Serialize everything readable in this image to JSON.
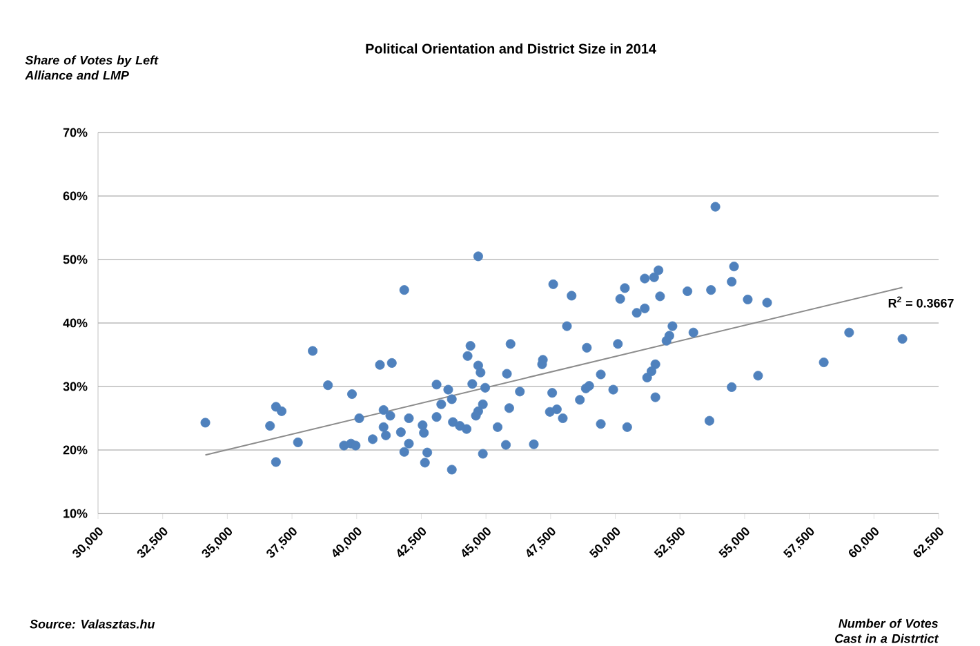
{
  "chart_data": {
    "type": "scatter",
    "title": "Political Orientation and District Size in 2014",
    "ylabel": "Share of Votes by Left Alliance and LMP",
    "xlabel": "Number of Votes Cast in a Distrtict",
    "annotations": [
      "Source: Valasztas.hu",
      {
        "text": "R$^{2}$ = 0.3667",
        "x": 61100,
        "y": 45.6
      }
    ],
    "xlim": [
      30000,
      62500
    ],
    "xticks": [
      {
        "value": 30000,
        "label": "30,000"
      },
      {
        "value": 32500,
        "label": "32,500"
      },
      {
        "value": 35000,
        "label": "35,000"
      },
      {
        "value": 37500,
        "label": "37,500"
      },
      {
        "value": 40000,
        "label": "40,000"
      },
      {
        "value": 42500,
        "label": "42,500"
      },
      {
        "value": 45000,
        "label": "45,000"
      },
      {
        "value": 47500,
        "label": "47,500"
      },
      {
        "value": 50000,
        "label": "50,000"
      },
      {
        "value": 52500,
        "label": "52,500"
      },
      {
        "value": 55000,
        "label": "55,000"
      },
      {
        "value": 57500,
        "label": "57,500"
      },
      {
        "value": 60000,
        "label": "60,000"
      },
      {
        "value": 62500,
        "label": "62,500"
      }
    ],
    "ylim": [
      10,
      70
    ],
    "yticks": [
      {
        "value": 10,
        "label": "10%"
      },
      {
        "value": 20,
        "label": "20%"
      },
      {
        "value": 30,
        "label": "30%"
      },
      {
        "value": 40,
        "label": "40%"
      },
      {
        "value": 50,
        "label": "50%"
      },
      {
        "value": 60,
        "label": "60%"
      },
      {
        "value": 70,
        "label": "70%"
      }
    ],
    "grid": "y",
    "series": [
      {
        "marker": "circle",
        "color": "#4f81bd",
        "x": [
          34150,
          36650,
          36880,
          37100,
          36880,
          37730,
          38300,
          38890,
          39820,
          40100,
          39510,
          39780,
          39960,
          40620,
          40900,
          41360,
          41840,
          41040,
          41300,
          41040,
          41130,
          41710,
          42020,
          42020,
          41840,
          42550,
          42600,
          42640,
          42730,
          43090,
          43540,
          43270,
          43090,
          43680,
          43680,
          43720,
          43990,
          44250,
          44400,
          44290,
          44700,
          44700,
          44790,
          44470,
          44970,
          44880,
          44700,
          44610,
          44880,
          45450,
          45770,
          45810,
          45950,
          46310,
          45900,
          46850,
          47200,
          47170,
          47600,
          47560,
          47470,
          47740,
          47970,
          48310,
          48130,
          48630,
          48860,
          48990,
          48900,
          49440,
          49440,
          49920,
          50100,
          50190,
          50370,
          50460,
          50830,
          51140,
          51140,
          51500,
          51670,
          51730,
          52210,
          52090,
          51980,
          51550,
          51400,
          51230,
          51550,
          53870,
          54590,
          54500,
          53700,
          52790,
          55120,
          55870,
          53020,
          54500,
          55520,
          53640,
          58060,
          59040,
          61100
        ],
        "values": [
          24.3,
          23.8,
          26.8,
          26.1,
          18.1,
          21.2,
          35.6,
          30.2,
          28.8,
          25.0,
          20.7,
          21.0,
          20.7,
          21.7,
          33.4,
          33.7,
          45.2,
          26.3,
          25.4,
          23.6,
          22.3,
          22.8,
          25.0,
          21.0,
          19.7,
          23.9,
          22.7,
          18.0,
          19.6,
          30.3,
          29.5,
          27.2,
          25.2,
          28.0,
          16.9,
          24.4,
          23.8,
          23.3,
          36.4,
          34.8,
          50.5,
          33.3,
          32.2,
          30.4,
          29.8,
          27.2,
          26.1,
          25.4,
          19.4,
          23.6,
          20.8,
          32.0,
          36.7,
          29.2,
          26.6,
          20.9,
          34.2,
          33.5,
          46.1,
          29.0,
          26.0,
          26.4,
          25.0,
          44.3,
          39.5,
          27.9,
          29.7,
          30.1,
          36.1,
          31.9,
          24.1,
          29.5,
          36.7,
          43.8,
          45.5,
          23.6,
          41.6,
          42.3,
          47.0,
          47.2,
          48.3,
          44.2,
          39.5,
          38.0,
          37.2,
          33.5,
          32.4,
          31.4,
          28.3,
          58.3,
          48.9,
          46.5,
          45.2,
          45.0,
          43.7,
          43.2,
          38.5,
          29.9,
          31.7,
          24.6,
          33.8,
          38.5,
          37.5
        ]
      },
      {
        "type": "line",
        "marker": "none",
        "color": "#8c8c8c",
        "x": [
          34150,
          61100
        ],
        "values": [
          19.2,
          45.6
        ]
      }
    ]
  }
}
